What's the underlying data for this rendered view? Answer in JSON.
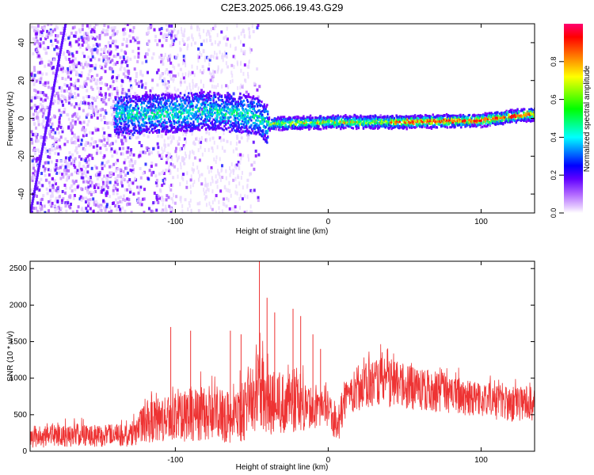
{
  "figure_title": "C2E3.2025.066.19.43.G29",
  "chart_data": [
    {
      "type": "heatmap",
      "title": "C2E3.2025.066.19.43.G29",
      "xlabel": "Height of straight line (km)",
      "ylabel": "Frequency (Hz)",
      "xlim": [
        -195,
        135
      ],
      "ylim": [
        -50,
        50
      ],
      "x_ticks": [
        -100,
        0,
        100
      ],
      "y_ticks": [
        -40,
        -20,
        0,
        20,
        40
      ],
      "colorbar": {
        "label": "Normalized spectral amplitude",
        "range": [
          0,
          1
        ],
        "ticks": [
          0.0,
          0.2,
          0.4,
          0.6,
          0.8
        ],
        "tick_labels": [
          "0.0",
          "0.2",
          "0.4",
          "0.6",
          "0.8"
        ],
        "colormap": [
          "#ffffff",
          "#e6ccff",
          "#8000ff",
          "#0000ff",
          "#00ffff",
          "#00ff00",
          "#ffff00",
          "#ff8000",
          "#ff0000",
          "#ff0080"
        ]
      },
      "ridge": {
        "description_points": [
          {
            "x": -120,
            "y": 2
          },
          {
            "x": -80,
            "y": 4
          },
          {
            "x": -50,
            "y": 2
          },
          {
            "x": -40,
            "y": -3
          },
          {
            "x": 0,
            "y": -2
          },
          {
            "x": 50,
            "y": -2
          },
          {
            "x": 100,
            "y": -1
          },
          {
            "x": 130,
            "y": 2
          }
        ]
      },
      "diagonal_streak": {
        "x_start": -195,
        "y_start": -50,
        "x_end": -172,
        "y_end": 50
      }
    },
    {
      "type": "line",
      "xlabel": "Height of straight line (km)",
      "ylabel": "SNR (10 * v/v)",
      "xlim": [
        -195,
        135
      ],
      "ylim": [
        0,
        2600
      ],
      "x_ticks": [
        -100,
        0,
        100
      ],
      "y_ticks": [
        0,
        500,
        1000,
        1500,
        2000,
        2500
      ],
      "color": "#ee3333",
      "envelope": {
        "x": [
          -195,
          -160,
          -130,
          -120,
          -100,
          -80,
          -60,
          -50,
          -45,
          -40,
          -20,
          -10,
          0,
          6,
          10,
          20,
          40,
          60,
          80,
          100,
          120,
          135
        ],
        "low": [
          50,
          60,
          60,
          120,
          120,
          150,
          100,
          200,
          300,
          200,
          250,
          300,
          350,
          50,
          400,
          550,
          600,
          550,
          500,
          450,
          400,
          400
        ],
        "high": [
          450,
          480,
          470,
          800,
          1100,
          1200,
          1100,
          1300,
          1800,
          1400,
          1300,
          1000,
          950,
          800,
          1100,
          1400,
          1500,
          1300,
          1200,
          1100,
          1000,
          1050
        ],
        "mean": [
          200,
          230,
          220,
          400,
          480,
          500,
          450,
          800,
          1000,
          700,
          650,
          600,
          650,
          300,
          750,
          950,
          1000,
          900,
          850,
          750,
          700,
          720
        ]
      },
      "spikes": [
        {
          "x": -103,
          "y": 1700
        },
        {
          "x": -90,
          "y": 1650
        },
        {
          "x": -64,
          "y": 1650
        },
        {
          "x": -57,
          "y": 1600
        },
        {
          "x": -45,
          "y": 2600
        },
        {
          "x": -40,
          "y": 2100
        },
        {
          "x": -35,
          "y": 1900
        },
        {
          "x": -23,
          "y": 1950
        },
        {
          "x": -18,
          "y": 1850
        },
        {
          "x": -10,
          "y": 1600
        },
        {
          "x": -5,
          "y": 1400
        }
      ]
    }
  ]
}
